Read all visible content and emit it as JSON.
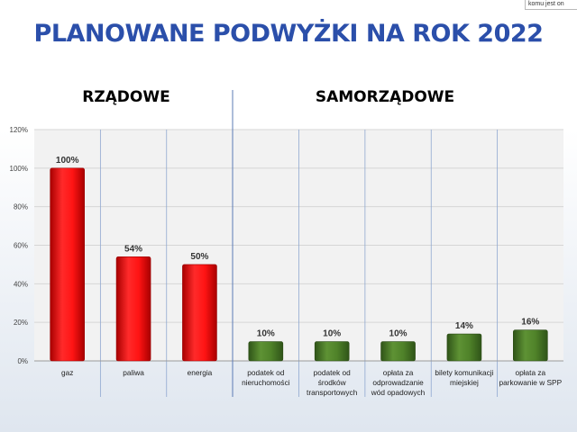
{
  "corner_note": "komu jest on",
  "title": "PLANOWANE PODWYŻKI NA ROK 2022",
  "groups": [
    {
      "label": "RZĄDOWE"
    },
    {
      "label": "SAMORZĄDOWE"
    }
  ],
  "colors": {
    "rzadowe": "#ee1111",
    "samorzadowe": "#4d7d2a",
    "title": "#2b4faa",
    "divider": "#5b7bb5"
  },
  "chart_data": {
    "type": "bar",
    "categories": [
      [
        "gaz"
      ],
      [
        "paliwa"
      ],
      [
        "energia"
      ],
      [
        "podatek od",
        "nieruchomości"
      ],
      [
        "podatek od",
        "środków",
        "transportowych"
      ],
      [
        "opłata za",
        "odprowadzanie",
        "wód opadowych"
      ],
      [
        "bilety komunikacji",
        "miejskiej"
      ],
      [
        "opłata za",
        "parkowanie w SPP"
      ]
    ],
    "values": [
      100,
      54,
      50,
      10,
      10,
      10,
      14,
      16
    ],
    "data_labels": [
      "100%",
      "54%",
      "50%",
      "10%",
      "10%",
      "10%",
      "14%",
      "16%"
    ],
    "groups": [
      "rzadowe",
      "rzadowe",
      "rzadowe",
      "samorzadowe",
      "samorzadowe",
      "samorzadowe",
      "samorzadowe",
      "samorzadowe"
    ],
    "yticks": [
      "0%",
      "20%",
      "40%",
      "60%",
      "80%",
      "100%",
      "120%"
    ],
    "ylim": [
      0,
      120
    ],
    "grid": true,
    "legend": "none"
  }
}
